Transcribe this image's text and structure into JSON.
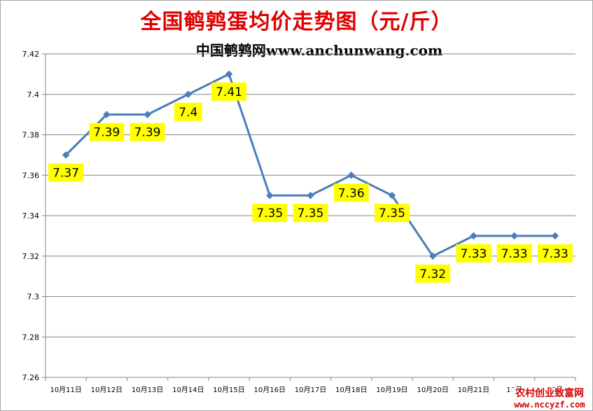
{
  "chart_data": {
    "type": "line",
    "title": "全国鹌鹑蛋均价走势图（元/斤）",
    "subtitle": "中国鹌鹑网www.anchunwang.com",
    "categories": [
      "10月11日",
      "10月12日",
      "10月13日",
      "10月14日",
      "10月15日",
      "10月16日",
      "10月17日",
      "10月18日",
      "10月19日",
      "10月20日",
      "10月21日",
      "10月22日",
      "10月23日"
    ],
    "x_tick_labels": [
      "10月11日",
      "10月12日",
      "10月13日",
      "10月14日",
      "10月15日",
      "10月16日",
      "10月17日",
      "10月18日",
      "10月19日",
      "10月20日",
      "10月21日",
      "10月",
      "10月"
    ],
    "series": [
      {
        "values": [
          7.37,
          7.39,
          7.39,
          7.4,
          7.41,
          7.35,
          7.35,
          7.36,
          7.35,
          7.32,
          7.33,
          7.33,
          7.33
        ]
      }
    ],
    "data_labels": [
      "7.37",
      "7.39",
      "7.39",
      "7.4",
      "7.41",
      "7.35",
      "7.35",
      "7.36",
      "7.35",
      "7.32",
      "7.33",
      "7.33",
      "7.33"
    ],
    "ylim": [
      7.26,
      7.42
    ],
    "y_ticks": [
      7.26,
      7.28,
      7.3,
      7.32,
      7.34,
      7.36,
      7.38,
      7.4,
      7.42
    ],
    "y_tick_labels": [
      "7.26",
      "7.28",
      "7.3",
      "7.32",
      "7.34",
      "7.36",
      "7.38",
      "7.4",
      "7.42"
    ],
    "grid": true,
    "legend": "none",
    "colors": {
      "line": "#4a7ebb",
      "label_bg": "#ffff00",
      "title": "#e00000",
      "gridline": "#868686"
    }
  },
  "watermark": {
    "line1": "农村创业致富网",
    "line2": "www.nccyzf.com"
  }
}
